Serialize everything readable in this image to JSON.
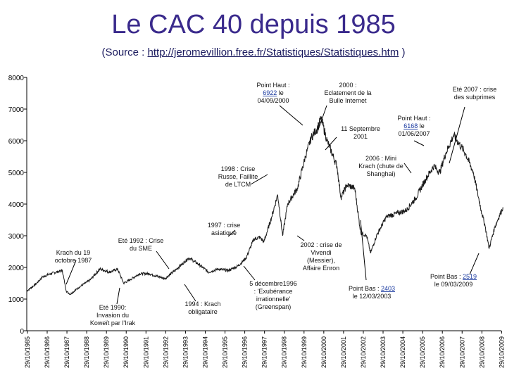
{
  "header": {
    "title": "Le CAC 40 depuis 1985",
    "subtitle_prefix": "(Source : ",
    "subtitle_link": "http://jeromevillion.free.fr/Statistiques/Statistiques.htm",
    "subtitle_suffix": " )"
  },
  "chart_data": {
    "type": "line",
    "ylim": [
      0,
      8000
    ],
    "yticks": [
      0,
      1000,
      2000,
      3000,
      4000,
      5000,
      6000,
      7000,
      8000
    ],
    "xticks": [
      "29/10/1985",
      "29/10/1986",
      "29/10/1987",
      "29/10/1988",
      "29/10/1989",
      "29/10/1990",
      "29/10/1991",
      "29/10/1992",
      "29/10/1993",
      "29/10/1994",
      "29/10/1995",
      "29/10/1996",
      "29/10/1997",
      "29/10/1998",
      "29/10/1999",
      "29/10/2000",
      "29/10/2001",
      "29/10/2002",
      "29/10/2003",
      "29/10/2004",
      "29/10/2005",
      "29/10/2006",
      "29/10/2007",
      "29/10/2008",
      "29/10/2009"
    ],
    "series": [
      {
        "color": "#1a1a1a",
        "x": [
          1985.8,
          1986.3,
          1986.6,
          1987.0,
          1987.6,
          1987.8,
          1988.0,
          1988.5,
          1989.0,
          1989.5,
          1990.0,
          1990.4,
          1990.7,
          1991.0,
          1991.5,
          1992.0,
          1992.5,
          1992.8,
          1993.3,
          1994.0,
          1994.5,
          1995.0,
          1995.5,
          1996.0,
          1996.5,
          1996.9,
          1997.3,
          1997.6,
          1997.8,
          1998.2,
          1998.5,
          1998.75,
          1999.0,
          1999.5,
          1999.9,
          2000.2,
          2000.5,
          2000.7,
          2001.0,
          2001.5,
          2001.7,
          2002.0,
          2002.4,
          2002.7,
          2003.0,
          2003.2,
          2003.5,
          2004.0,
          2004.5,
          2005.0,
          2005.5,
          2006.0,
          2006.4,
          2006.7,
          2007.0,
          2007.4,
          2007.8,
          2008.0,
          2008.4,
          2008.8,
          2009.0,
          2009.2,
          2009.5,
          2009.9
        ],
        "y": [
          1250,
          1500,
          1700,
          1800,
          1900,
          1250,
          1150,
          1400,
          1600,
          1950,
          1850,
          1950,
          1500,
          1600,
          1800,
          1800,
          1700,
          1650,
          1900,
          2300,
          2100,
          1850,
          1950,
          1900,
          2050,
          2300,
          2900,
          2950,
          2800,
          3600,
          4300,
          3000,
          4000,
          4500,
          5500,
          6100,
          6400,
          6700,
          6000,
          5200,
          4200,
          4600,
          4500,
          3100,
          3000,
          2450,
          3000,
          3600,
          3700,
          3800,
          4200,
          4800,
          5200,
          5000,
          5600,
          6168,
          5800,
          5600,
          5000,
          3800,
          3300,
          2600,
          3300,
          3900
        ]
      }
    ],
    "annotations": [
      {
        "id": "ph2000",
        "lines": [
          "Point Haut :",
          "6922 le",
          "04/09/2000"
        ],
        "underline": 1
      },
      {
        "id": "eclat2000",
        "lines": [
          "2000 :",
          "Eclatement de la",
          "Bulle Internet"
        ]
      },
      {
        "id": "ete2007",
        "lines": [
          "Eté 2007 : crise",
          "des subprimes"
        ]
      },
      {
        "id": "ph2007",
        "lines": [
          "Point Haut :",
          "6168 le",
          "01/06/2007"
        ],
        "underline": 1
      },
      {
        "id": "sep2001",
        "lines": [
          "11 Septembre",
          "2001"
        ]
      },
      {
        "id": "krach2006",
        "lines": [
          "2006 : Mini",
          "Krach (chute de",
          "Shanghai)"
        ]
      },
      {
        "id": "russie1998",
        "lines": [
          "1998 : Crise",
          "Russe, Faillite",
          "de LTCM"
        ]
      },
      {
        "id": "asie1997",
        "lines": [
          "1997 : crise",
          "asiatique"
        ]
      },
      {
        "id": "sme1992",
        "lines": [
          "Eté 1992 : Crise",
          "du SME"
        ]
      },
      {
        "id": "krach1987",
        "lines": [
          "Krach du 19",
          "octobre 1987"
        ]
      },
      {
        "id": "vivendi2002",
        "lines": [
          "2002 : crise de",
          "Vivendi",
          "(Messier),",
          "Affaire Enron"
        ]
      },
      {
        "id": "greenspan1996",
        "lines": [
          "5 décembre1996",
          ": 'Exubérance",
          "irrationnelle'",
          "(Greenspan)"
        ]
      },
      {
        "id": "pb2003",
        "lines": [
          "Point Bas : 2403",
          "le 12/03/2003"
        ]
      },
      {
        "id": "pb2009",
        "lines": [
          "Point Bas : 2519",
          "le 09/03/2009"
        ]
      },
      {
        "id": "koweit1990",
        "lines": [
          "Eté 1990:",
          "Invasion du",
          "Koweït par l'Irak"
        ]
      },
      {
        "id": "krach1994",
        "lines": [
          "1994 : Krach",
          "obligataire"
        ]
      }
    ]
  }
}
